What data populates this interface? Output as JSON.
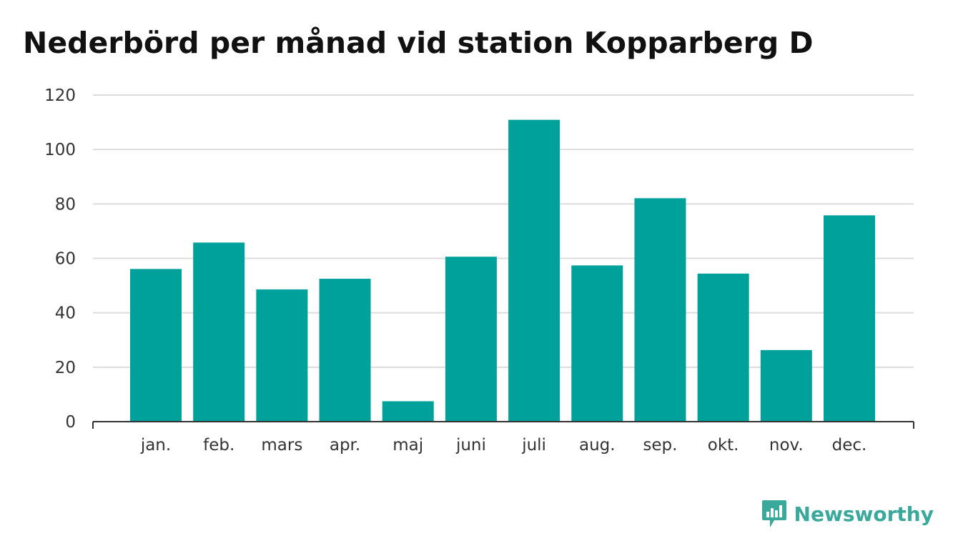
{
  "chart_data": {
    "type": "bar",
    "title": "Nederbörd per månad vid station Kopparberg D",
    "categories": [
      "jan.",
      "feb.",
      "mars",
      "apr.",
      "maj",
      "juni",
      "juli",
      "aug.",
      "sep.",
      "okt.",
      "nov.",
      "dec."
    ],
    "values": [
      56.1,
      65.8,
      48.6,
      52.5,
      7.5,
      60.6,
      110.9,
      57.4,
      82.1,
      54.4,
      26.3,
      75.8
    ],
    "xlabel": "",
    "ylabel": "",
    "ylim": [
      0,
      120
    ],
    "yticks": [
      "0",
      "20",
      "40",
      "60",
      "80",
      "100",
      "120"
    ],
    "grid": true,
    "bar_color": "#00a19a"
  },
  "brand": {
    "name": "Newsworthy",
    "icon": "newsworthy-logo-icon",
    "color": "#3aa89b"
  }
}
